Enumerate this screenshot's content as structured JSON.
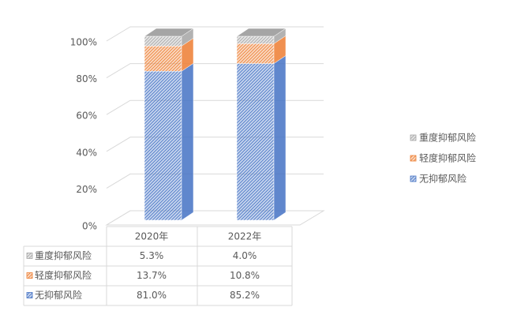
{
  "chart_data": {
    "type": "bar3d-stacked",
    "categories": [
      "2020年",
      "2022年"
    ],
    "series": [
      {
        "name": "无抑郁风险",
        "color": "#4472c4",
        "values": [
          81.0,
          85.2
        ],
        "value_labels": [
          "81.0%",
          "85.2%"
        ]
      },
      {
        "name": "轻度抑郁风险",
        "color": "#ed7d31",
        "values": [
          13.7,
          10.8
        ],
        "value_labels": [
          "13.7%",
          "10.8%"
        ]
      },
      {
        "name": "重度抑郁风险",
        "color": "#a5a5a5",
        "values": [
          5.3,
          4.0
        ],
        "value_labels": [
          "5.3%",
          "4.0%"
        ]
      }
    ],
    "ylim": [
      0,
      100
    ],
    "yticks": [
      {
        "value": 0,
        "label": "0%"
      },
      {
        "value": 20,
        "label": "20%"
      },
      {
        "value": 40,
        "label": "40%"
      },
      {
        "value": 60,
        "label": "60%"
      },
      {
        "value": 80,
        "label": "80%"
      },
      {
        "value": 100,
        "label": "100%"
      }
    ],
    "grid": true,
    "legend": "right"
  }
}
